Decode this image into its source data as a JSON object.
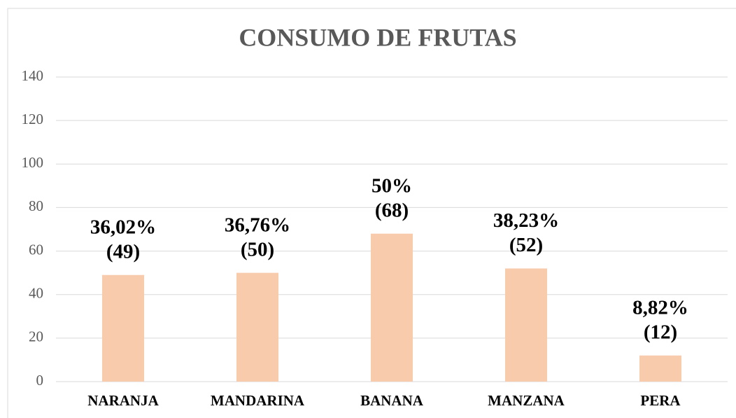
{
  "chart_data": {
    "type": "bar",
    "title": "CONSUMO DE FRUTAS",
    "categories": [
      "NARANJA",
      "MANDARINA",
      "BANANA",
      "MANZANA",
      "PERA"
    ],
    "values": [
      49,
      50,
      68,
      52,
      12
    ],
    "value_labels": [
      [
        "36,02%",
        "(49)"
      ],
      [
        "36,76%",
        "(50)"
      ],
      [
        "50%",
        "(68)"
      ],
      [
        "38,23%",
        "(52)"
      ],
      [
        "8,82%",
        "(12)"
      ]
    ],
    "color": "#f8cbad",
    "ylim": [
      0,
      140
    ],
    "yticks": [
      0,
      20,
      40,
      60,
      80,
      100,
      120,
      140
    ],
    "grid": true
  }
}
